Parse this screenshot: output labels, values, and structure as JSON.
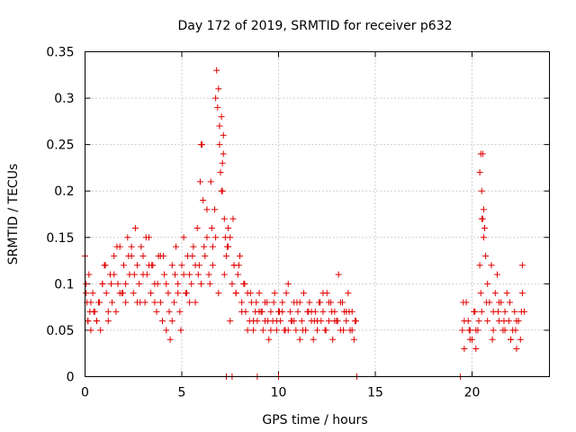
{
  "chart_data": {
    "type": "scatter",
    "title": "Day 172 of 2019, SRMTID for receiver p632",
    "xlabel": "GPS time / hours",
    "ylabel": "SRMTID / TECUs",
    "xlim": [
      0,
      24
    ],
    "ylim": [
      0,
      0.35
    ],
    "xticks": [
      0,
      5,
      10,
      15,
      20
    ],
    "yticks": [
      0,
      0.05,
      0.1,
      0.15,
      0.2,
      0.25,
      0.3,
      0.35
    ],
    "ytick_labels": [
      "0",
      "0.05",
      "0.1",
      "0.15",
      "0.2",
      "0.25",
      "0.3",
      "0.35"
    ],
    "grid": true,
    "marker": "+",
    "color": "#e00000",
    "series": [
      {
        "name": "SRMTID",
        "x": [
          0.0,
          0.05,
          0.1,
          0.15,
          0.2,
          0.25,
          0.3,
          0.4,
          0.5,
          0.6,
          0.7,
          0.8,
          0.9,
          1.0,
          1.1,
          1.2,
          1.3,
          1.4,
          1.5,
          1.6,
          1.7,
          1.8,
          1.9,
          2.0,
          2.1,
          2.2,
          2.3,
          2.4,
          2.5,
          2.6,
          2.7,
          2.8,
          2.9,
          3.0,
          3.1,
          3.2,
          3.3,
          3.4,
          3.5,
          3.6,
          3.7,
          3.8,
          3.9,
          4.0,
          4.1,
          4.2,
          4.3,
          4.4,
          4.5,
          4.6,
          4.7,
          4.8,
          4.9,
          5.0,
          5.1,
          5.2,
          5.3,
          5.4,
          5.5,
          5.6,
          5.7,
          5.8,
          5.9,
          6.0,
          6.1,
          6.2,
          6.3,
          6.4,
          6.5,
          6.6,
          6.7,
          6.8,
          6.85,
          6.9,
          6.95,
          7.0,
          7.05,
          7.1,
          7.15,
          7.2,
          7.3,
          7.4,
          7.5,
          7.6,
          7.7,
          7.8,
          7.9,
          8.0,
          8.1,
          8.2,
          8.3,
          8.4,
          8.5,
          8.6,
          8.7,
          8.8,
          8.9,
          9.0,
          9.1,
          9.2,
          9.3,
          9.4,
          9.5,
          9.6,
          9.7,
          9.8,
          9.9,
          10.0,
          10.1,
          10.2,
          10.3,
          10.4,
          10.5,
          10.6,
          10.7,
          10.8,
          10.9,
          11.0,
          11.1,
          11.2,
          11.3,
          11.4,
          11.5,
          11.6,
          11.7,
          11.8,
          11.9,
          12.0,
          12.1,
          12.2,
          12.3,
          12.4,
          12.5,
          12.6,
          12.7,
          12.8,
          12.9,
          13.0,
          13.1,
          13.2,
          13.3,
          13.4,
          13.5,
          13.6,
          13.7,
          13.8,
          13.9,
          14.0,
          19.5,
          19.6,
          19.7,
          19.8,
          19.9,
          20.0,
          20.1,
          20.2,
          20.3,
          20.35,
          20.4,
          20.45,
          20.5,
          20.55,
          20.6,
          20.7,
          20.8,
          20.9,
          21.0,
          21.1,
          21.2,
          21.3,
          21.4,
          21.5,
          21.6,
          21.7,
          21.8,
          21.9,
          22.0,
          22.1,
          22.2,
          22.3,
          22.4,
          22.5,
          22.6,
          22.7,
          0.05,
          0.3,
          0.6,
          0.9,
          1.2,
          1.5,
          1.8,
          2.1,
          2.4,
          2.7,
          3.0,
          3.3,
          3.6,
          3.9,
          4.2,
          4.5,
          4.8,
          5.1,
          5.4,
          5.7,
          6.0,
          6.3,
          6.6,
          6.9,
          7.2,
          7.5,
          7.8,
          8.1,
          8.4,
          8.7,
          9.0,
          9.3,
          9.6,
          9.9,
          10.2,
          10.5,
          10.8,
          11.1,
          11.4,
          11.7,
          12.0,
          12.3,
          12.6,
          12.9,
          13.2,
          13.5,
          13.8,
          19.6,
          19.9,
          20.2,
          20.5,
          20.8,
          21.1,
          21.4,
          21.7,
          22.0,
          22.3,
          22.6,
          0.15,
          0.45,
          0.75,
          1.05,
          1.35,
          1.65,
          1.95,
          2.25,
          2.55,
          2.85,
          3.15,
          3.45,
          3.75,
          4.05,
          4.35,
          4.65,
          4.95,
          5.25,
          5.55,
          5.85,
          6.15,
          6.45,
          6.75,
          7.05,
          7.35,
          7.65,
          7.95,
          8.25,
          8.55,
          8.85,
          9.15,
          9.45,
          9.75,
          10.05,
          10.35,
          10.65,
          10.95,
          11.25,
          11.55,
          11.85,
          12.15,
          12.45,
          12.75,
          13.05,
          13.35,
          13.65,
          13.95,
          19.55,
          19.85,
          20.15,
          20.45,
          20.75,
          21.05,
          21.35,
          21.65,
          21.95,
          22.25,
          22.55,
          5.95,
          6.05,
          6.55,
          6.75,
          6.95,
          7.1,
          7.15,
          7.25,
          7.4,
          7.7,
          20.4,
          20.5,
          20.6,
          20.65,
          20.55,
          7.3,
          7.6,
          8.9,
          10.0,
          14.05,
          19.4
        ],
        "y": [
          0.13,
          0.1,
          0.08,
          0.06,
          0.11,
          0.07,
          0.05,
          0.09,
          0.07,
          0.06,
          0.08,
          0.05,
          0.1,
          0.12,
          0.09,
          0.06,
          0.11,
          0.08,
          0.13,
          0.07,
          0.1,
          0.14,
          0.09,
          0.12,
          0.08,
          0.15,
          0.11,
          0.13,
          0.09,
          0.16,
          0.12,
          0.1,
          0.14,
          0.13,
          0.08,
          0.11,
          0.15,
          0.09,
          0.12,
          0.1,
          0.07,
          0.13,
          0.08,
          0.06,
          0.11,
          0.05,
          0.09,
          0.04,
          0.12,
          0.08,
          0.14,
          0.1,
          0.07,
          0.12,
          0.15,
          0.09,
          0.13,
          0.11,
          0.1,
          0.14,
          0.08,
          0.16,
          0.12,
          0.25,
          0.19,
          0.13,
          0.15,
          0.11,
          0.21,
          0.14,
          0.18,
          0.33,
          0.29,
          0.31,
          0.25,
          0.22,
          0.28,
          0.2,
          0.24,
          0.17,
          0.13,
          0.16,
          0.15,
          0.1,
          0.12,
          0.09,
          0.11,
          0.13,
          0.08,
          0.1,
          0.07,
          0.09,
          0.06,
          0.08,
          0.05,
          0.07,
          0.06,
          0.09,
          0.07,
          0.05,
          0.06,
          0.08,
          0.04,
          0.07,
          0.06,
          0.09,
          0.05,
          0.07,
          0.06,
          0.08,
          0.05,
          0.09,
          0.1,
          0.07,
          0.06,
          0.08,
          0.05,
          0.07,
          0.04,
          0.06,
          0.09,
          0.05,
          0.07,
          0.08,
          0.06,
          0.04,
          0.07,
          0.05,
          0.08,
          0.06,
          0.07,
          0.05,
          0.09,
          0.06,
          0.08,
          0.04,
          0.07,
          0.06,
          0.11,
          0.05,
          0.08,
          0.07,
          0.06,
          0.09,
          0.05,
          0.07,
          0.04,
          0.06,
          0.05,
          0.03,
          0.08,
          0.06,
          0.05,
          0.04,
          0.07,
          0.03,
          0.05,
          0.06,
          0.12,
          0.24,
          0.2,
          0.17,
          0.15,
          0.13,
          0.1,
          0.08,
          0.12,
          0.07,
          0.09,
          0.11,
          0.06,
          0.08,
          0.05,
          0.07,
          0.09,
          0.06,
          0.04,
          0.05,
          0.07,
          0.03,
          0.06,
          0.04,
          0.12,
          0.07,
          0.09,
          0.08,
          0.06,
          0.1,
          0.07,
          0.11,
          0.09,
          0.1,
          0.14,
          0.08,
          0.11,
          0.12,
          0.08,
          0.13,
          0.1,
          0.06,
          0.09,
          0.11,
          0.08,
          0.12,
          0.1,
          0.18,
          0.12,
          0.09,
          0.11,
          0.06,
          0.09,
          0.07,
          0.05,
          0.06,
          0.07,
          0.08,
          0.05,
          0.06,
          0.07,
          0.05,
          0.06,
          0.08,
          0.05,
          0.07,
          0.06,
          0.09,
          0.08,
          0.06,
          0.08,
          0.07,
          0.05,
          0.06,
          0.04,
          0.05,
          0.07,
          0.06,
          0.05,
          0.08,
          0.05,
          0.04,
          0.06,
          0.09,
          0.06,
          0.07,
          0.08,
          0.12,
          0.1,
          0.14,
          0.09,
          0.13,
          0.11,
          0.08,
          0.15,
          0.12,
          0.1,
          0.13,
          0.07,
          0.11,
          0.05,
          0.09,
          0.13,
          0.11,
          0.14,
          0.1,
          0.15,
          0.2,
          0.14,
          0.17,
          0.12,
          0.1,
          0.09,
          0.08,
          0.07,
          0.06,
          0.08,
          0.07,
          0.05,
          0.06,
          0.08,
          0.05,
          0.07,
          0.06,
          0.08,
          0.05,
          0.07,
          0.06,
          0.05,
          0.07,
          0.06,
          0.08,
          0.05,
          0.07,
          0.09,
          0.08,
          0.04,
          0.07,
          0.06,
          0.08,
          0.05,
          0.07,
          0.21,
          0.25,
          0.16,
          0.3,
          0.27,
          0.23,
          0.26,
          0.15,
          0.14,
          0.12,
          0.22,
          0.17,
          0.18,
          0.16,
          0.24,
          0.0,
          0.0,
          0.0,
          0.0,
          0.0,
          0.0
        ]
      }
    ]
  }
}
